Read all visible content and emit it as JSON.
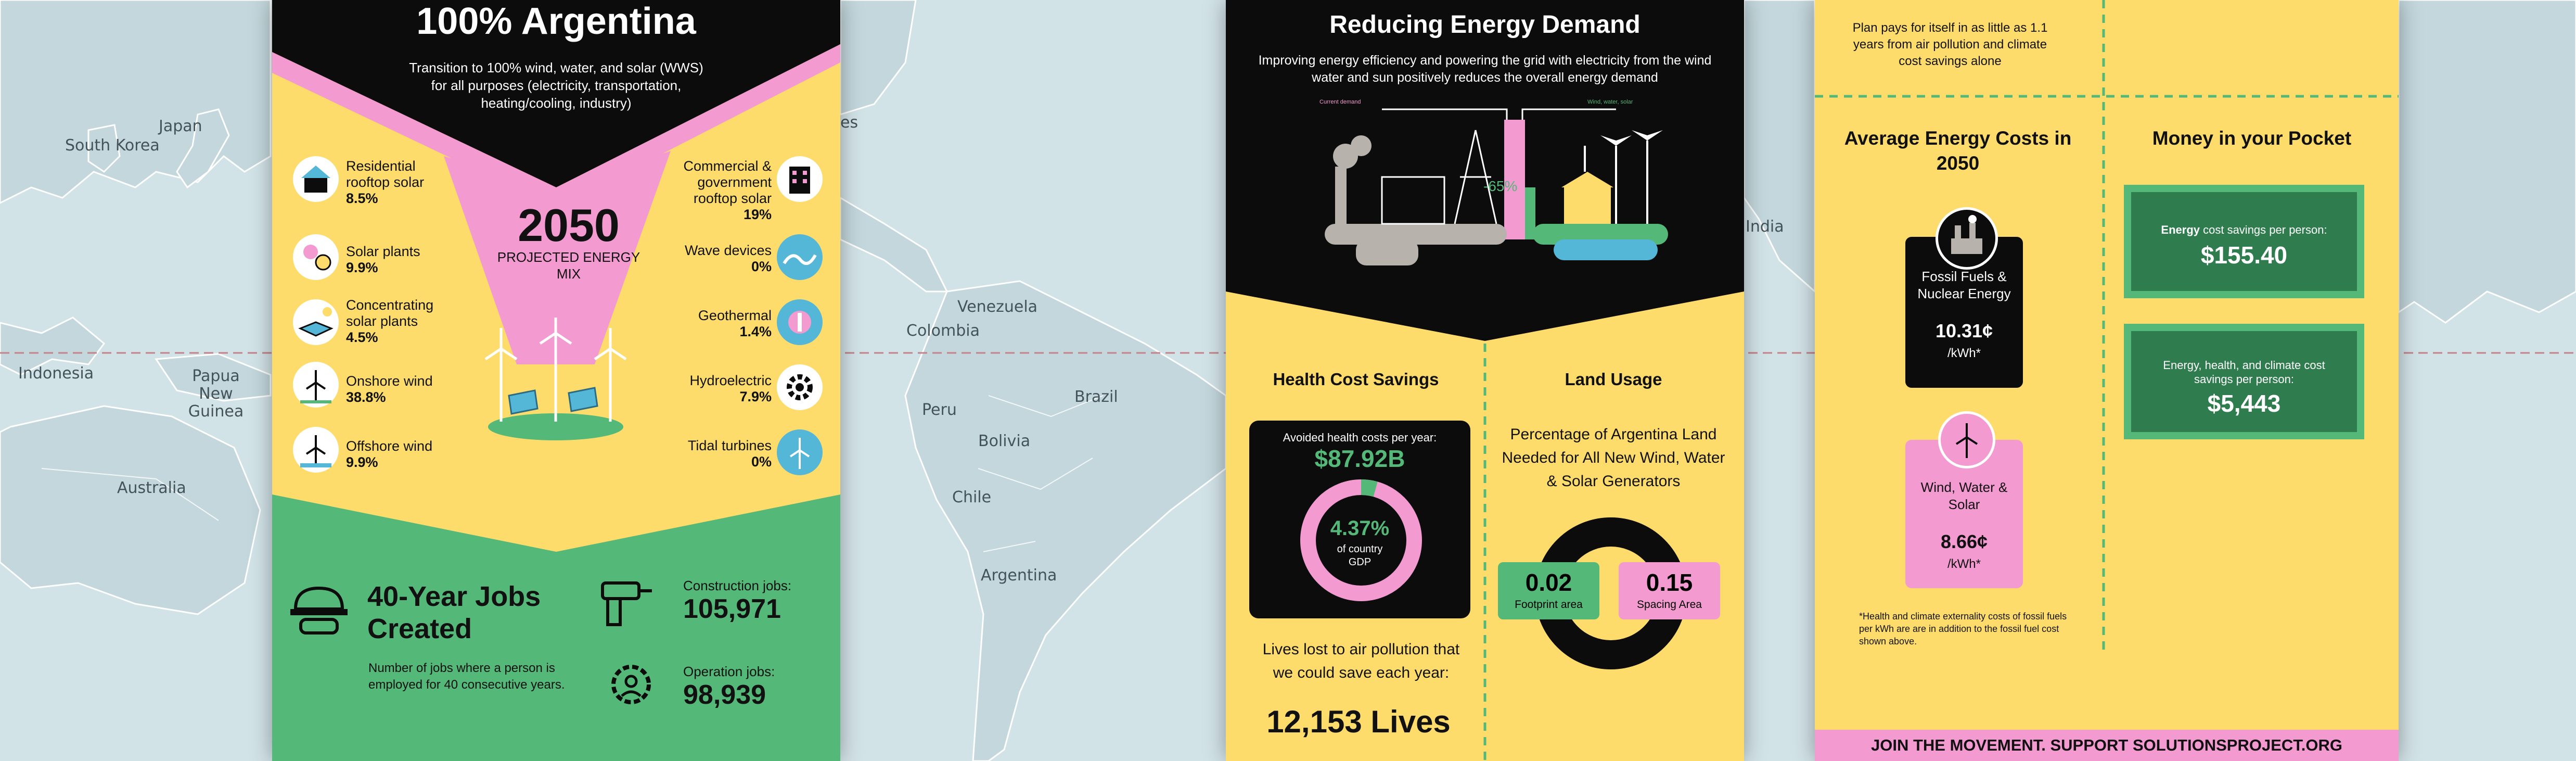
{
  "map": {
    "labels": {
      "japan": "Japan",
      "south_korea": "South Korea",
      "indonesia": "Indonesia",
      "papua_new_guinea": "Papua New Guinea",
      "australia": "Australia",
      "venezuela": "Venezuela",
      "colombia": "Colombia",
      "brazil": "Brazil",
      "peru": "Peru",
      "bolivia": "Bolivia",
      "chile": "Chile",
      "argentina": "Argentina",
      "india": "India",
      "es_fragment": "es"
    }
  },
  "panel1": {
    "title": "100% Argentina",
    "subtitle": "Transition to 100% wind, water, and solar (WWS) for all purposes (electricity, transportation, heating/cooling, industry)",
    "mix_year": "2050",
    "mix_label": "PROJECTED ENERGY MIX",
    "left_items": [
      {
        "label": "Residential rooftop solar",
        "value": "8.5%",
        "icon": "house-solar-icon"
      },
      {
        "label": "Solar plants",
        "value": "9.9%",
        "icon": "solar-plant-icon"
      },
      {
        "label": "Concentrating solar plants",
        "value": "4.5%",
        "icon": "concentrating-solar-icon"
      },
      {
        "label": "Onshore wind",
        "value": "38.8%",
        "icon": "onshore-wind-icon"
      },
      {
        "label": "Offshore wind",
        "value": "9.9%",
        "icon": "offshore-wind-icon"
      }
    ],
    "right_items": [
      {
        "label": "Commercial & government rooftop solar",
        "value": "19%",
        "icon": "commercial-building-icon"
      },
      {
        "label": "Wave devices",
        "value": "0%",
        "icon": "wave-icon"
      },
      {
        "label": "Geothermal",
        "value": "1.4%",
        "icon": "geothermal-icon"
      },
      {
        "label": "Hydroelectric",
        "value": "7.9%",
        "icon": "hydro-gear-icon"
      },
      {
        "label": "Tidal turbines",
        "value": "0%",
        "icon": "tidal-turbine-icon"
      }
    ],
    "jobs": {
      "title": "40-Year Jobs Created",
      "description": "Number of jobs where a person is employed for 40 consecutive years.",
      "construction_label": "Construction jobs:",
      "construction_value": "105,971",
      "operation_label": "Operation jobs:",
      "operation_value": "98,939"
    }
  },
  "panel2": {
    "title": "Reducing Energy Demand",
    "subtitle": "Improving energy efficiency and powering the grid with electricity from the wind water and sun positively reduces the overall energy demand",
    "legend_current": "Current demand",
    "legend_wws": "Wind, water, solar",
    "reduction": "-65%",
    "health": {
      "heading": "Health Cost Savings",
      "avoided_label": "Avoided health costs per year:",
      "avoided_value": "$87.92B",
      "gdp_percent": "4.37%",
      "gdp_label": "of country GDP",
      "gdp_fraction": 0.0437,
      "lives_text": "Lives lost to air pollution that we could save each year:",
      "lives_value": "12,153 Lives"
    },
    "land": {
      "heading": "Land Usage",
      "description": "Percentage of Argentina Land Needed for All New Wind, Water & Solar Generators",
      "footprint_value": "0.02",
      "footprint_label": "Footprint area",
      "spacing_value": "0.15",
      "spacing_label": "Spacing Area"
    }
  },
  "panel3": {
    "payback": "Plan pays for itself in as little as 1.1 years from air pollution and climate cost savings alone",
    "avg_heading": "Average Energy Costs in 2050",
    "money_heading": "Money in your Pocket",
    "fossil_label": "Fossil Fuels & Nuclear Energy",
    "fossil_value": "10.31¢",
    "fossil_unit": "/kWh*",
    "wws_label": "Wind, Water & Solar",
    "wws_value": "8.66¢",
    "wws_unit": "/kWh*",
    "energy_savings_bold": "Energy",
    "energy_savings_label": " cost savings per person:",
    "energy_savings_value": "$155.40",
    "total_savings_label": "Energy, health, and climate cost savings per person:",
    "total_savings_value": "$5,443",
    "footnote": "*Health and climate externality costs of fossil fuels per kWh are are in addition to the fossil fuel cost shown above.",
    "footer": "JOIN THE MOVEMENT. SUPPORT SOLUTIONSPROJECT.ORG"
  },
  "colors": {
    "yellow": "#fddc6b",
    "green": "#54b879",
    "pink": "#f39ad0",
    "black": "#0c0c0c",
    "dark_green": "#2f7d4f",
    "ocean": "#d2e3e7",
    "land": "#c3d7dc"
  }
}
